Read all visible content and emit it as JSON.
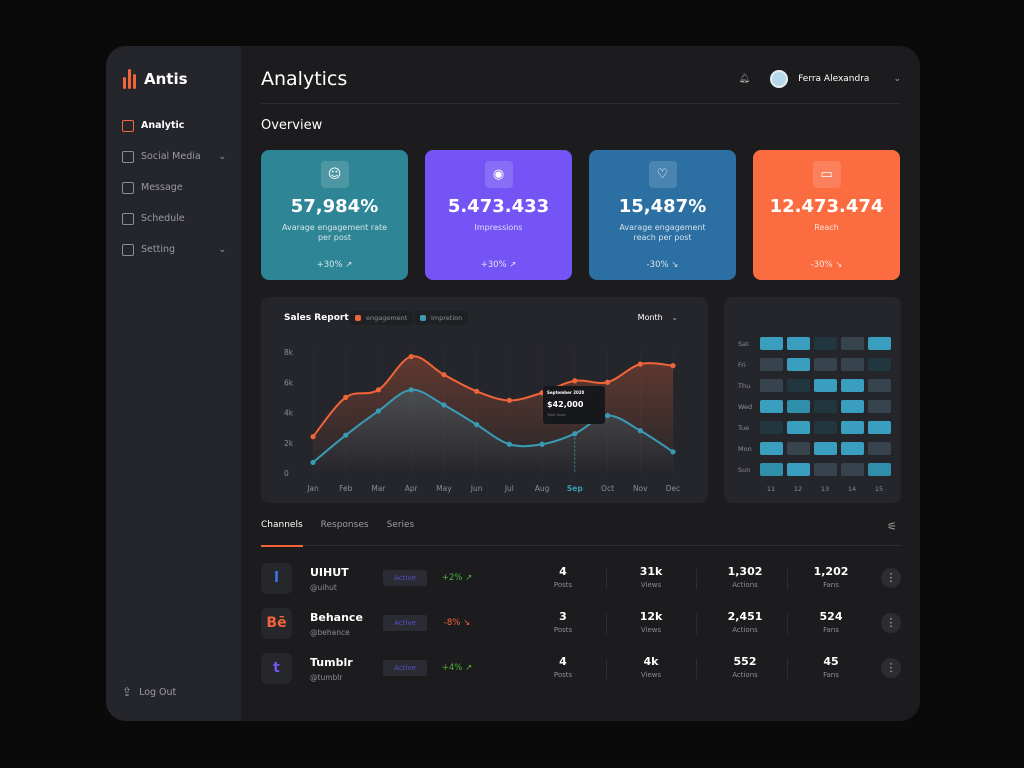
{
  "app": {
    "name": "Antis"
  },
  "sidebar": {
    "items": [
      {
        "label": "Analytic",
        "icon": "chart-icon",
        "active": true
      },
      {
        "label": "Social Media",
        "icon": "globe-icon",
        "expandable": true
      },
      {
        "label": "Message",
        "icon": "mail-icon"
      },
      {
        "label": "Schedule",
        "icon": "calendar-icon"
      },
      {
        "label": "Setting",
        "icon": "gear-icon",
        "expandable": true
      }
    ],
    "logout": "Log Out"
  },
  "header": {
    "title": "Analytics",
    "user": "Ferra Alexandra"
  },
  "overview": {
    "title": "Overview",
    "cards": [
      {
        "value": "57,984%",
        "label": "Avarage engagement rate per post",
        "change": "+30%",
        "trend": "up",
        "icon": "smile-icon",
        "color": "#2e8596"
      },
      {
        "value": "5.473.433",
        "label": "Impressions",
        "change": "+30%",
        "trend": "up",
        "icon": "eye-icon",
        "color": "#7454f5"
      },
      {
        "value": "15,487%",
        "label": "Avarage engagement reach per post",
        "change": "-30%",
        "trend": "down",
        "icon": "heart-icon",
        "color": "#2b6fa3"
      },
      {
        "value": "12.473.474",
        "label": "Reach",
        "change": "-30%",
        "trend": "down",
        "icon": "cast-icon",
        "color": "#fb6c41"
      }
    ]
  },
  "chart_data": {
    "type": "line",
    "title": "Sales Report",
    "period": "Month",
    "categories": [
      "Jan",
      "Feb",
      "Mar",
      "Apr",
      "May",
      "Jun",
      "Jul",
      "Aug",
      "Sep",
      "Oct",
      "Nov",
      "Dec"
    ],
    "highlight": "Sep",
    "ylim": [
      0,
      8000
    ],
    "yticks": [
      "0",
      "2k",
      "4k",
      "6k",
      "8k"
    ],
    "series": [
      {
        "name": "engagement",
        "color": "#f0643a",
        "values": [
          2400,
          5000,
          5500,
          7700,
          6500,
          5400,
          4800,
          5300,
          6100,
          6000,
          7200,
          7100
        ]
      },
      {
        "name": "impretion",
        "color": "#3a9bb5",
        "values": [
          700,
          2500,
          4100,
          5500,
          4500,
          3200,
          1900,
          1900,
          2600,
          3800,
          2800,
          1400
        ]
      }
    ],
    "tooltip": {
      "title": "September 2020",
      "value": "$42,000",
      "sub": "Total Sales"
    }
  },
  "heatmap": {
    "rows": [
      "Sat",
      "Fri",
      "Thu",
      "Wed",
      "Tue",
      "Mon",
      "Sun"
    ],
    "cols": [
      "11",
      "12",
      "13",
      "14",
      "15"
    ],
    "levels": [
      [
        3,
        3,
        0,
        1,
        3
      ],
      [
        1,
        3,
        1,
        1,
        0
      ],
      [
        1,
        0,
        3,
        3,
        1
      ],
      [
        3,
        2,
        0,
        3,
        1
      ],
      [
        0,
        3,
        0,
        3,
        3
      ],
      [
        3,
        1,
        3,
        3,
        1
      ],
      [
        2,
        3,
        1,
        1,
        2
      ]
    ]
  },
  "tabs": [
    "Channels",
    "Responses",
    "Series"
  ],
  "channels": [
    {
      "name": "UIHUT",
      "handle": "@uihut",
      "logo": "l",
      "logo_color": "#3a7bf0",
      "status": "Active",
      "change": "+2%",
      "trend": "up",
      "posts": "4",
      "views": "31k",
      "actions": "1,302",
      "fans": "1,202"
    },
    {
      "name": "Behance",
      "handle": "@behance",
      "logo": "Bē",
      "logo_color": "#f0643a",
      "status": "Active",
      "change": "-8%",
      "trend": "down",
      "posts": "3",
      "views": "12k",
      "actions": "2,451",
      "fans": "524"
    },
    {
      "name": "Tumblr",
      "handle": "@tumblr",
      "logo": "t",
      "logo_color": "#7454f5",
      "status": "Active",
      "change": "+4%",
      "trend": "up",
      "posts": "4",
      "views": "4k",
      "actions": "552",
      "fans": "45"
    }
  ],
  "stat_labels": {
    "posts": "Posts",
    "views": "Views",
    "actions": "Actions",
    "fans": "Fans"
  }
}
